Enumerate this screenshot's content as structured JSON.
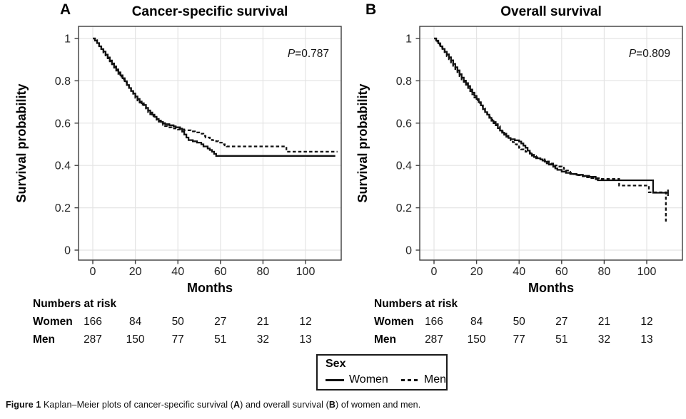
{
  "colors": {
    "curve": "#111111",
    "grid": "#e4e4e4",
    "border": "#3c3c3c",
    "tick_label": "#262626",
    "text": "#000000"
  },
  "legend": {
    "title": "Sex",
    "items": [
      {
        "label": "Women",
        "style": "solid"
      },
      {
        "label": "Men",
        "style": "dashed"
      }
    ]
  },
  "risk_table": {
    "header": "Numbers at risk",
    "months": [
      0,
      20,
      40,
      60,
      80,
      100
    ],
    "rows": [
      {
        "label": "Women",
        "counts": [
          "166",
          "84",
          "50",
          "27",
          "21",
          "12"
        ]
      },
      {
        "label": "Men",
        "counts": [
          "287",
          "150",
          "77",
          "51",
          "32",
          "13"
        ]
      }
    ]
  },
  "figure": {
    "caption_segments": [
      {
        "text": "Figure 1 ",
        "bold": true
      },
      {
        "text": "Kaplan–Meier plots of cancer-specific survival (",
        "bold": false
      },
      {
        "text": "A",
        "bold": true
      },
      {
        "text": ") and overall survival (",
        "bold": false
      },
      {
        "text": "B",
        "bold": true
      },
      {
        "text": ") of women and men.",
        "bold": false
      }
    ]
  },
  "chart_data": [
    {
      "type": "line",
      "panel_label": "A",
      "title": "Cancer-specific survival",
      "p_italic": "P",
      "p_rest": "=0.787",
      "xlabel": "Months",
      "ylabel": "Survival probability",
      "x_ticks": [
        0,
        20,
        40,
        60,
        80,
        100
      ],
      "y_ticks": [
        0,
        0.2,
        0.4,
        0.6,
        0.8,
        1
      ],
      "y_tick_labels": [
        "0",
        "0.2",
        "0.4",
        "0.6",
        "0.8",
        "1"
      ],
      "xlim": [
        0,
        117
      ],
      "ylim": [
        0,
        1
      ],
      "grid": true,
      "legend_position": "bottom-shared",
      "series": [
        {
          "name": "Women",
          "line": "solid",
          "end_tick": false,
          "steps": [
            [
              0,
              1
            ],
            [
              1,
              0.99
            ],
            [
              2,
              0.978
            ],
            [
              3,
              0.963
            ],
            [
              4,
              0.95
            ],
            [
              5,
              0.938
            ],
            [
              6,
              0.924
            ],
            [
              7,
              0.91
            ],
            [
              8,
              0.896
            ],
            [
              9,
              0.882
            ],
            [
              10,
              0.868
            ],
            [
              11,
              0.854
            ],
            [
              12,
              0.84
            ],
            [
              13,
              0.826
            ],
            [
              14,
              0.812
            ],
            [
              15,
              0.798
            ],
            [
              16,
              0.78
            ],
            [
              17,
              0.766
            ],
            [
              18,
              0.752
            ],
            [
              19,
              0.74
            ],
            [
              20,
              0.726
            ],
            [
              21,
              0.714
            ],
            [
              22,
              0.702
            ],
            [
              23,
              0.694
            ],
            [
              24,
              0.686
            ],
            [
              25,
              0.672
            ],
            [
              26,
              0.66
            ],
            [
              27,
              0.65
            ],
            [
              28,
              0.64
            ],
            [
              29,
              0.63
            ],
            [
              30,
              0.62
            ],
            [
              31,
              0.612
            ],
            [
              32,
              0.606
            ],
            [
              33,
              0.6
            ],
            [
              34,
              0.595
            ],
            [
              36,
              0.59
            ],
            [
              38,
              0.585
            ],
            [
              39,
              0.58
            ],
            [
              41,
              0.574
            ],
            [
              42,
              0.56
            ],
            [
              43,
              0.546
            ],
            [
              44,
              0.532
            ],
            [
              45,
              0.52
            ],
            [
              47,
              0.514
            ],
            [
              49,
              0.508
            ],
            [
              51,
              0.5
            ],
            [
              52,
              0.49
            ],
            [
              54,
              0.48
            ],
            [
              55,
              0.473
            ],
            [
              56,
              0.465
            ],
            [
              57,
              0.455
            ],
            [
              58,
              0.445
            ],
            [
              114,
              0.445
            ]
          ]
        },
        {
          "name": "Men",
          "line": "dashed",
          "end_tick": false,
          "steps": [
            [
              0,
              1
            ],
            [
              1,
              0.992
            ],
            [
              2,
              0.976
            ],
            [
              3,
              0.962
            ],
            [
              4,
              0.947
            ],
            [
              5,
              0.933
            ],
            [
              6,
              0.92
            ],
            [
              7,
              0.906
            ],
            [
              8,
              0.892
            ],
            [
              9,
              0.878
            ],
            [
              10,
              0.862
            ],
            [
              11,
              0.848
            ],
            [
              12,
              0.833
            ],
            [
              13,
              0.82
            ],
            [
              14,
              0.806
            ],
            [
              15,
              0.792
            ],
            [
              16,
              0.777
            ],
            [
              17,
              0.763
            ],
            [
              18,
              0.748
            ],
            [
              19,
              0.734
            ],
            [
              20,
              0.72
            ],
            [
              21,
              0.707
            ],
            [
              22,
              0.697
            ],
            [
              23,
              0.687
            ],
            [
              24,
              0.677
            ],
            [
              25,
              0.665
            ],
            [
              26,
              0.652
            ],
            [
              27,
              0.642
            ],
            [
              28,
              0.634
            ],
            [
              29,
              0.625
            ],
            [
              30,
              0.616
            ],
            [
              31,
              0.607
            ],
            [
              32,
              0.6
            ],
            [
              33,
              0.592
            ],
            [
              34,
              0.586
            ],
            [
              35,
              0.58
            ],
            [
              37,
              0.575
            ],
            [
              40,
              0.57
            ],
            [
              43,
              0.566
            ],
            [
              46,
              0.561
            ],
            [
              48,
              0.556
            ],
            [
              50,
              0.55
            ],
            [
              52,
              0.54
            ],
            [
              53,
              0.532
            ],
            [
              55,
              0.525
            ],
            [
              56,
              0.52
            ],
            [
              58,
              0.514
            ],
            [
              59,
              0.508
            ],
            [
              61,
              0.5
            ],
            [
              62,
              0.495
            ],
            [
              63,
              0.49
            ],
            [
              90,
              0.49
            ],
            [
              91,
              0.465
            ],
            [
              115,
              0.465
            ]
          ]
        }
      ]
    },
    {
      "type": "line",
      "panel_label": "B",
      "title": "Overall survival",
      "p_italic": "P",
      "p_rest": "=0.809",
      "xlabel": "Months",
      "ylabel": "Survival probability",
      "x_ticks": [
        0,
        20,
        40,
        60,
        80,
        100
      ],
      "y_ticks": [
        0,
        0.2,
        0.4,
        0.6,
        0.8,
        1
      ],
      "y_tick_labels": [
        "0",
        "0.2",
        "0.4",
        "0.6",
        "0.8",
        "1"
      ],
      "xlim": [
        0,
        117
      ],
      "ylim": [
        0,
        1
      ],
      "grid": true,
      "legend_position": "bottom-shared",
      "series": [
        {
          "name": "Women",
          "line": "solid",
          "end_tick": true,
          "steps": [
            [
              0,
              1
            ],
            [
              1,
              0.99
            ],
            [
              2,
              0.977
            ],
            [
              3,
              0.963
            ],
            [
              4,
              0.951
            ],
            [
              5,
              0.937
            ],
            [
              6,
              0.925
            ],
            [
              7,
              0.911
            ],
            [
              8,
              0.897
            ],
            [
              9,
              0.88
            ],
            [
              10,
              0.864
            ],
            [
              11,
              0.849
            ],
            [
              12,
              0.831
            ],
            [
              13,
              0.815
            ],
            [
              14,
              0.801
            ],
            [
              15,
              0.789
            ],
            [
              16,
              0.775
            ],
            [
              17,
              0.759
            ],
            [
              18,
              0.744
            ],
            [
              19,
              0.729
            ],
            [
              20,
              0.714
            ],
            [
              21,
              0.699
            ],
            [
              22,
              0.684
            ],
            [
              23,
              0.666
            ],
            [
              24,
              0.652
            ],
            [
              25,
              0.64
            ],
            [
              26,
              0.625
            ],
            [
              27,
              0.611
            ],
            [
              28,
              0.6
            ],
            [
              29,
              0.59
            ],
            [
              30,
              0.576
            ],
            [
              31,
              0.565
            ],
            [
              32,
              0.555
            ],
            [
              33,
              0.545
            ],
            [
              34,
              0.536
            ],
            [
              35,
              0.53
            ],
            [
              36,
              0.524
            ],
            [
              38,
              0.519
            ],
            [
              40,
              0.513
            ],
            [
              41,
              0.504
            ],
            [
              42,
              0.494
            ],
            [
              43,
              0.484
            ],
            [
              44,
              0.47
            ],
            [
              45,
              0.456
            ],
            [
              46,
              0.446
            ],
            [
              47,
              0.44
            ],
            [
              48,
              0.434
            ],
            [
              50,
              0.429
            ],
            [
              51,
              0.423
            ],
            [
              52,
              0.418
            ],
            [
              53,
              0.41
            ],
            [
              54,
              0.404
            ],
            [
              56,
              0.394
            ],
            [
              57,
              0.386
            ],
            [
              58,
              0.379
            ],
            [
              60,
              0.371
            ],
            [
              62,
              0.365
            ],
            [
              64,
              0.36
            ],
            [
              67,
              0.356
            ],
            [
              70,
              0.351
            ],
            [
              73,
              0.346
            ],
            [
              76,
              0.335
            ],
            [
              77,
              0.33
            ],
            [
              102,
              0.33
            ],
            [
              103,
              0.271
            ],
            [
              110,
              0.271
            ]
          ]
        },
        {
          "name": "Men",
          "line": "dashed",
          "end_tick": false,
          "steps": [
            [
              0,
              1
            ],
            [
              1,
              0.986
            ],
            [
              2,
              0.971
            ],
            [
              3,
              0.957
            ],
            [
              4,
              0.945
            ],
            [
              5,
              0.931
            ],
            [
              6,
              0.917
            ],
            [
              7,
              0.902
            ],
            [
              8,
              0.887
            ],
            [
              9,
              0.871
            ],
            [
              10,
              0.856
            ],
            [
              11,
              0.841
            ],
            [
              12,
              0.822
            ],
            [
              13,
              0.807
            ],
            [
              14,
              0.795
            ],
            [
              15,
              0.781
            ],
            [
              16,
              0.766
            ],
            [
              17,
              0.751
            ],
            [
              18,
              0.736
            ],
            [
              19,
              0.721
            ],
            [
              20,
              0.709
            ],
            [
              21,
              0.695
            ],
            [
              22,
              0.681
            ],
            [
              23,
              0.669
            ],
            [
              24,
              0.655
            ],
            [
              25,
              0.644
            ],
            [
              26,
              0.63
            ],
            [
              27,
              0.616
            ],
            [
              28,
              0.605
            ],
            [
              29,
              0.595
            ],
            [
              30,
              0.585
            ],
            [
              31,
              0.574
            ],
            [
              32,
              0.561
            ],
            [
              33,
              0.55
            ],
            [
              34,
              0.54
            ],
            [
              35,
              0.53
            ],
            [
              36,
              0.52
            ],
            [
              37,
              0.51
            ],
            [
              38,
              0.5
            ],
            [
              39,
              0.49
            ],
            [
              40,
              0.484
            ],
            [
              41,
              0.476
            ],
            [
              42,
              0.47
            ],
            [
              43,
              0.465
            ],
            [
              45,
              0.459
            ],
            [
              46,
              0.45
            ],
            [
              47,
              0.444
            ],
            [
              48,
              0.439
            ],
            [
              49,
              0.434
            ],
            [
              50,
              0.429
            ],
            [
              52,
              0.424
            ],
            [
              53,
              0.419
            ],
            [
              54,
              0.414
            ],
            [
              55,
              0.409
            ],
            [
              56,
              0.4
            ],
            [
              58,
              0.395
            ],
            [
              60,
              0.39
            ],
            [
              61,
              0.384
            ],
            [
              62,
              0.376
            ],
            [
              63,
              0.37
            ],
            [
              64,
              0.365
            ],
            [
              65,
              0.359
            ],
            [
              67,
              0.354
            ],
            [
              69,
              0.349
            ],
            [
              71,
              0.344
            ],
            [
              74,
              0.34
            ],
            [
              78,
              0.336
            ],
            [
              87,
              0.305
            ],
            [
              101,
              0.273
            ],
            [
              108,
              0.273
            ],
            [
              109,
              0.135
            ]
          ]
        }
      ]
    }
  ]
}
